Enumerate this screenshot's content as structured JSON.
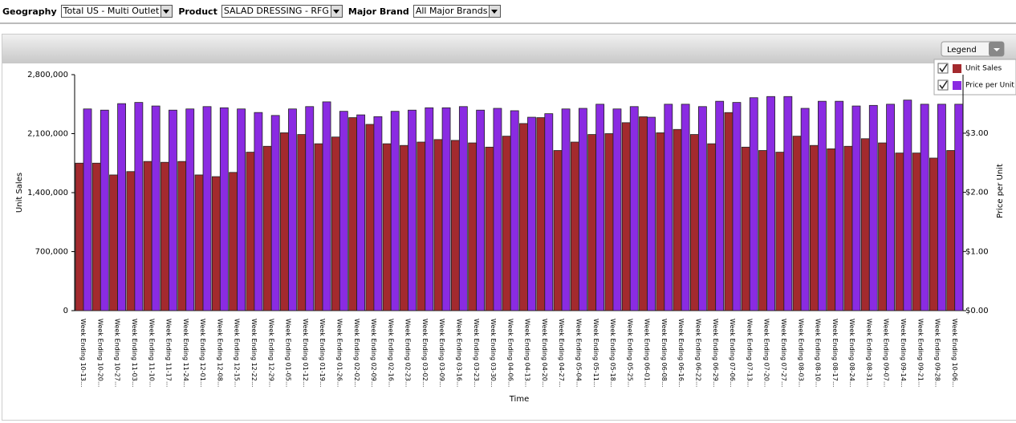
{
  "filters": [
    {
      "label": "Geography",
      "value": "Total US - Multi Outlet"
    },
    {
      "label": "Product",
      "value": "SALAD DRESSING - RFG"
    },
    {
      "label": "Major Brand",
      "value": "All Major Brands"
    }
  ],
  "legend_button": "Legend",
  "chart_data": {
    "type": "bar",
    "x_label": "Time",
    "y_label": "Unit Sales",
    "y2_label": "Price per Unit",
    "categories": [
      "Week Ending 10-13...",
      "Week Ending 10-20...",
      "Week Ending 10-27...",
      "Week Ending 11-03...",
      "Week Ending 11-10...",
      "Week Ending 11-17...",
      "Week Ending 11-24...",
      "Week Ending 12-01...",
      "Week Ending 12-08...",
      "Week Ending 12-15...",
      "Week Ending 12-22...",
      "Week Ending 12-29...",
      "Week Ending 01-05...",
      "Week Ending 01-12...",
      "Week Ending 01-19...",
      "Week Ending 01-26...",
      "Week Ending 02-02...",
      "Week Ending 02-09...",
      "Week Ending 02-16...",
      "Week Ending 02-23...",
      "Week Ending 03-02...",
      "Week Ending 03-09...",
      "Week Ending 03-16...",
      "Week Ending 03-23...",
      "Week Ending 03-30...",
      "Week Ending 04-06...",
      "Week Ending 04-13...",
      "Week Ending 04-20...",
      "Week Ending 04-27...",
      "Week Ending 05-04...",
      "Week Ending 05-11...",
      "Week Ending 05-18...",
      "Week Ending 05-25...",
      "Week Ending 06-01...",
      "Week Ending 06-08...",
      "Week Ending 06-16...",
      "Week Ending 06-22...",
      "Week Ending 06-29...",
      "Week Ending 07-06...",
      "Week Ending 07-13...",
      "Week Ending 07-20...",
      "Week Ending 07-27...",
      "Week Ending 08-03...",
      "Week Ending 08-10...",
      "Week Ending 08-17...",
      "Week Ending 08-24...",
      "Week Ending 08-31...",
      "Week Ending 09-07...",
      "Week Ending 09-14...",
      "Week Ending 09-21...",
      "Week Ending 09-28...",
      "Week Ending 10-06..."
    ],
    "series": [
      {
        "name": "Unit Sales",
        "color": "#a32a2e",
        "values": [
          1750000,
          1750000,
          1610000,
          1650000,
          1770000,
          1760000,
          1770000,
          1610000,
          1590000,
          1640000,
          1880000,
          1950000,
          2110000,
          2090000,
          1980000,
          2060000,
          2290000,
          2210000,
          1980000,
          1960000,
          2000000,
          2030000,
          2020000,
          1990000,
          1940000,
          2070000,
          2220000,
          2290000,
          1900000,
          2000000,
          2090000,
          2100000,
          2230000,
          2300000,
          2110000,
          2150000,
          2090000,
          1980000,
          2350000,
          1940000,
          1900000,
          1880000,
          2070000,
          1960000,
          1920000,
          1950000,
          2040000,
          1990000,
          1870000,
          1870000,
          1810000,
          1900000
        ]
      },
      {
        "name": "Price per Unit",
        "color": "#8a2be2",
        "axis": "y2",
        "values": [
          3.41,
          3.39,
          3.5,
          3.52,
          3.46,
          3.39,
          3.41,
          3.45,
          3.43,
          3.41,
          3.35,
          3.3,
          3.41,
          3.45,
          3.53,
          3.37,
          3.31,
          3.28,
          3.37,
          3.39,
          3.43,
          3.43,
          3.45,
          3.39,
          3.42,
          3.38,
          3.27,
          3.33,
          3.41,
          3.42,
          3.49,
          3.41,
          3.45,
          3.27,
          3.49,
          3.49,
          3.45,
          3.54,
          3.52,
          3.6,
          3.62,
          3.62,
          3.42,
          3.54,
          3.54,
          3.46,
          3.47,
          3.49,
          3.56,
          3.49,
          3.49,
          3.49
        ]
      }
    ],
    "ylim": [
      0,
      2800000
    ],
    "yticks": [
      0,
      {
        "value": 700000,
        "label": "700,000"
      },
      {
        "value": 1400000,
        "label": "1,400,000"
      },
      {
        "value": 2100000,
        "label": "2,100,000"
      },
      {
        "value": 2800000,
        "label": "2,800,000"
      }
    ],
    "y2lim": [
      0,
      3.99
    ],
    "y2ticks": [
      {
        "value": 0,
        "label": "$0.00"
      },
      {
        "value": 1,
        "label": "$1.00"
      },
      {
        "value": 2,
        "label": "$2.00"
      },
      {
        "value": 3,
        "label": "$3.00"
      }
    ]
  }
}
